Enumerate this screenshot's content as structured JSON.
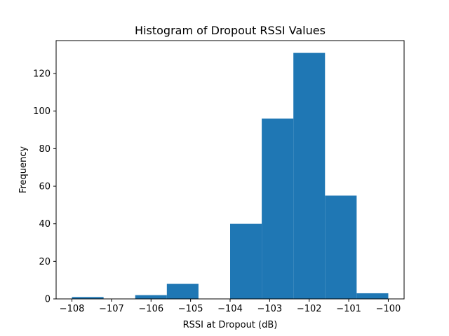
{
  "chart_data": {
    "type": "bar",
    "title": "Histogram of Dropout RSSI Values",
    "xlabel": "RSSI at Dropout (dB)",
    "ylabel": "Frequency",
    "bins": [
      {
        "x0": -108.0,
        "x1": -107.2,
        "count": 1
      },
      {
        "x0": -107.2,
        "x1": -106.4,
        "count": 0
      },
      {
        "x0": -106.4,
        "x1": -105.6,
        "count": 2
      },
      {
        "x0": -105.6,
        "x1": -104.8,
        "count": 8
      },
      {
        "x0": -104.8,
        "x1": -104.0,
        "count": 0
      },
      {
        "x0": -104.0,
        "x1": -103.2,
        "count": 40
      },
      {
        "x0": -103.2,
        "x1": -102.4,
        "count": 96
      },
      {
        "x0": -102.4,
        "x1": -101.6,
        "count": 131
      },
      {
        "x0": -101.6,
        "x1": -100.8,
        "count": 55
      },
      {
        "x0": -100.8,
        "x1": -100.0,
        "count": 3
      }
    ],
    "xlim": [
      -108.4,
      -99.6
    ],
    "ylim": [
      0,
      137.55
    ],
    "xticks": [
      -108,
      -107,
      -106,
      -105,
      -104,
      -103,
      -102,
      -101,
      -100
    ],
    "xtick_labels": [
      "−108",
      "−107",
      "−106",
      "−105",
      "−104",
      "−103",
      "−102",
      "−101",
      "−100"
    ],
    "yticks": [
      0,
      20,
      40,
      60,
      80,
      100,
      120
    ],
    "ytick_labels": [
      "0",
      "20",
      "40",
      "60",
      "80",
      "100",
      "120"
    ],
    "bar_color": "#1f77b4",
    "grid": false,
    "legend": "none"
  }
}
